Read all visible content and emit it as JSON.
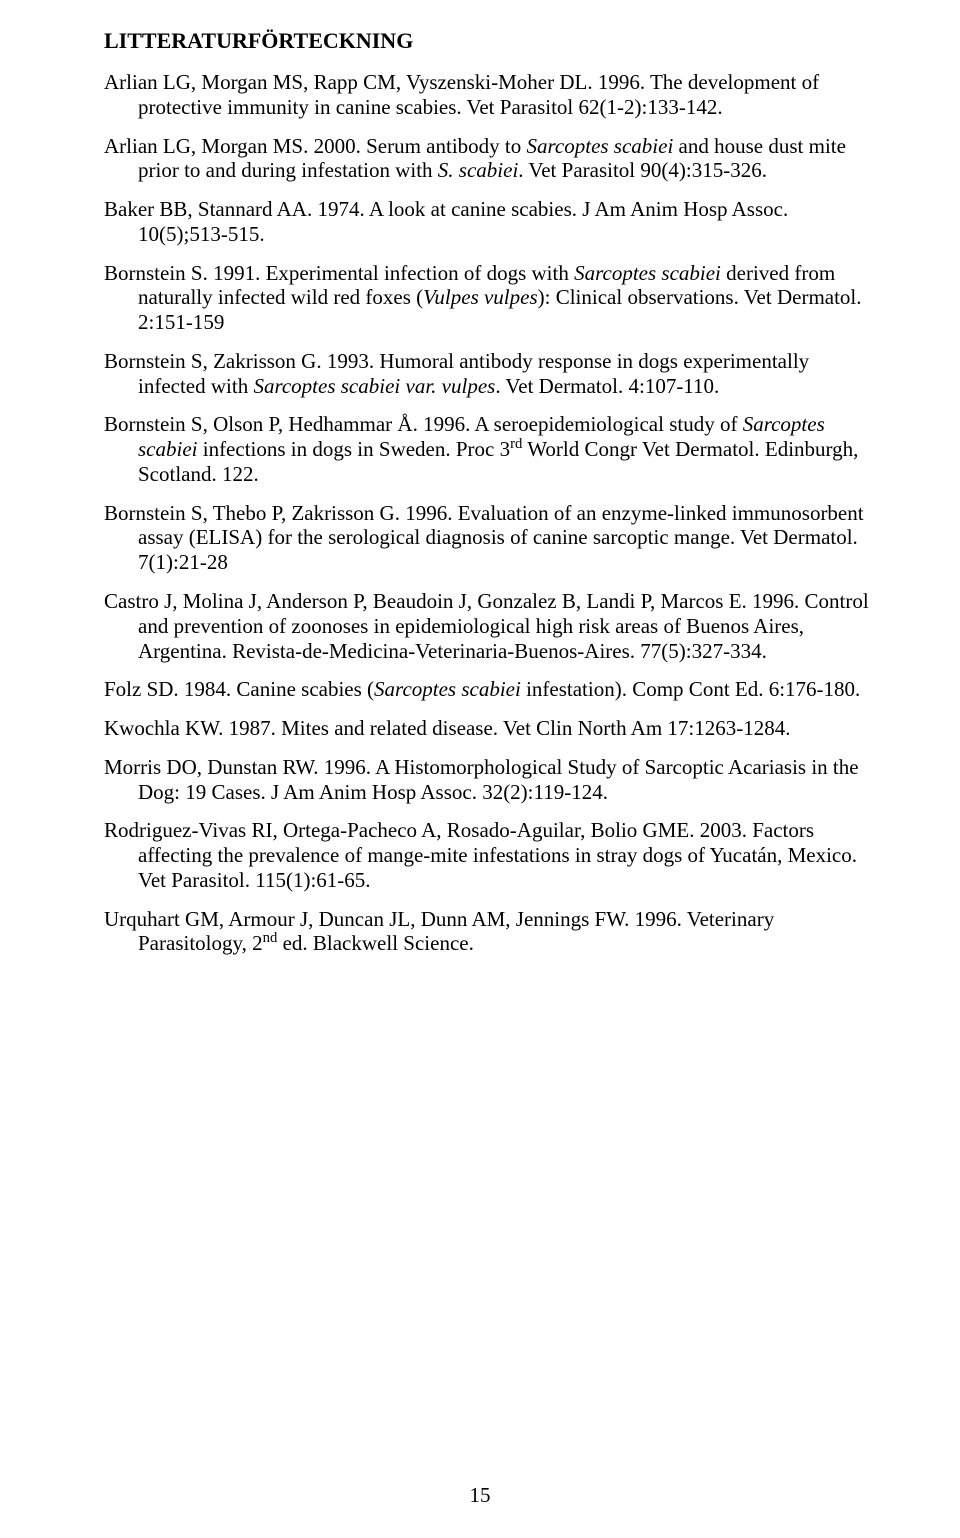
{
  "heading": "LITTERATURFÖRTECKNING",
  "refs": [
    [
      {
        "t": "Arlian LG, Morgan MS, Rapp CM, Vyszenski-Moher DL. 1996. The development of protective immunity in canine scabies. Vet Parasitol 62(1-2):133-142."
      }
    ],
    [
      {
        "t": "Arlian LG, Morgan MS. 2000. Serum antibody to "
      },
      {
        "t": "Sarcoptes scabiei",
        "i": true
      },
      {
        "t": " and house dust mite prior to and during infestation with "
      },
      {
        "t": "S. scabiei",
        "i": true
      },
      {
        "t": ". Vet Parasitol 90(4):315-326."
      }
    ],
    [
      {
        "t": "Baker BB, Stannard AA. 1974. A look at canine scabies. J Am Anim Hosp Assoc. 10(5);513-515."
      }
    ],
    [
      {
        "t": "Bornstein S. 1991. Experimental infection of dogs with "
      },
      {
        "t": "Sarcoptes scabiei",
        "i": true
      },
      {
        "t": " derived from naturally infected wild red foxes ("
      },
      {
        "t": "Vulpes vulpes",
        "i": true
      },
      {
        "t": "): Clinical observations. Vet Dermatol. 2:151-159"
      }
    ],
    [
      {
        "t": "Bornstein S, Zakrisson G. 1993. Humoral antibody response in dogs experimentally infected with "
      },
      {
        "t": "Sarcoptes scabiei var. vulpes",
        "i": true
      },
      {
        "t": ". Vet Dermatol. 4:107-110."
      }
    ],
    [
      {
        "t": "Bornstein S, Olson P, Hedhammar Å. 1996. A seroepidemiological study of "
      },
      {
        "t": "Sarcoptes scabiei",
        "i": true
      },
      {
        "t": " infections in dogs in Sweden. Proc 3"
      },
      {
        "t": "rd",
        "sup": true
      },
      {
        "t": " World Congr Vet Dermatol. Edinburgh, Scotland. 122."
      }
    ],
    [
      {
        "t": "Bornstein S, Thebo P, Zakrisson G. 1996. Evaluation of an enzyme-linked immunosorbent assay (ELISA) for the serological diagnosis of canine sarcoptic mange. Vet Dermatol. 7(1):21-28"
      }
    ],
    [
      {
        "t": "Castro J, Molina J, Anderson P, Beaudoin J, Gonzalez B, Landi P, Marcos E. 1996. Control and prevention of  zoonoses in epidemiological high risk areas of Buenos Aires, Argentina. Revista-de-Medicina-Veterinaria-Buenos-Aires. 77(5):327-334."
      }
    ],
    [
      {
        "t": "Folz SD. 1984. Canine scabies ("
      },
      {
        "t": "Sarcoptes scabiei",
        "i": true
      },
      {
        "t": " infestation). Comp Cont Ed. 6:176-180."
      }
    ],
    [
      {
        "t": "Kwochla KW. 1987. Mites and related disease. Vet Clin North Am 17:1263-1284."
      }
    ],
    [
      {
        "t": "Morris DO, Dunstan RW. 1996. A Histomorphological Study of Sarcoptic Acariasis in the Dog: 19 Cases. J Am Anim Hosp Assoc. 32(2):119-124."
      }
    ],
    [
      {
        "t": "Rodriguez-Vivas RI, Ortega-Pacheco A, Rosado-Aguilar, Bolio GME. 2003. Factors affecting the prevalence of mange-mite infestations in stray dogs of Yucatán, Mexico. Vet Parasitol. 115(1):61-65."
      }
    ],
    [
      {
        "t": "Urquhart GM, Armour J, Duncan JL, Dunn AM, Jennings FW. 1996. Veterinary Parasitology, 2"
      },
      {
        "t": "nd",
        "sup": true
      },
      {
        "t": " ed. Blackwell Science."
      }
    ]
  ],
  "pageNumber": "15"
}
